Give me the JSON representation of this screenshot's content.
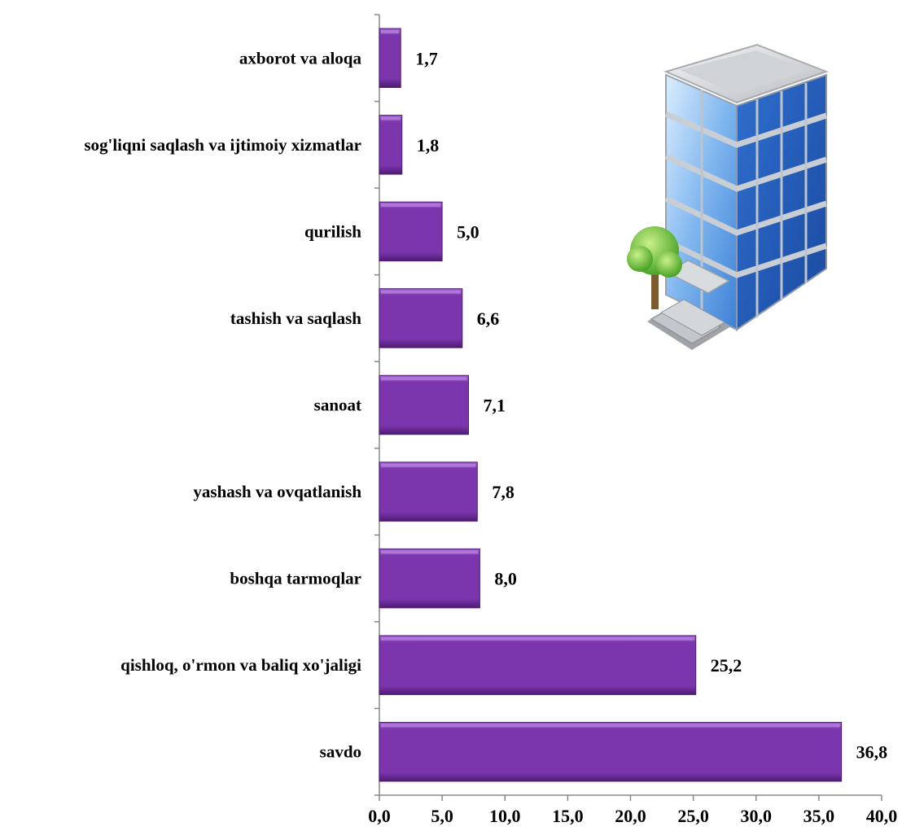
{
  "chart_data": {
    "type": "bar",
    "orientation": "horizontal",
    "categories": [
      "axborot va aloqa",
      "sog'liqni saqlash va ijtimoiy xizmatlar",
      "qurilish",
      "tashish va saqlash",
      "sanoat",
      "yashash va ovqatlanish",
      "boshqa tarmoqlar",
      "qishloq, o'rmon va baliq xo'jaligi",
      "savdo"
    ],
    "values": [
      1.7,
      1.8,
      5.0,
      6.6,
      7.1,
      7.8,
      8.0,
      25.2,
      36.8
    ],
    "value_labels": [
      "1,7",
      "1,8",
      "5,0",
      "6,6",
      "7,1",
      "7,8",
      "8,0",
      "25,2",
      "36,8"
    ],
    "xlim": [
      0,
      40
    ],
    "xticks": [
      "0,0",
      "5,0",
      "10,0",
      "15,0",
      "20,0",
      "25,0",
      "30,0",
      "35,0",
      "40,0"
    ],
    "title": "",
    "xlabel": "",
    "ylabel": "",
    "grid": false,
    "legend": "none",
    "bar_color": "#7b35ad",
    "bar_color_light": "#a25fd4",
    "bar_color_dark": "#4e1a73"
  },
  "decoration": {
    "icon": "office-building-icon"
  }
}
